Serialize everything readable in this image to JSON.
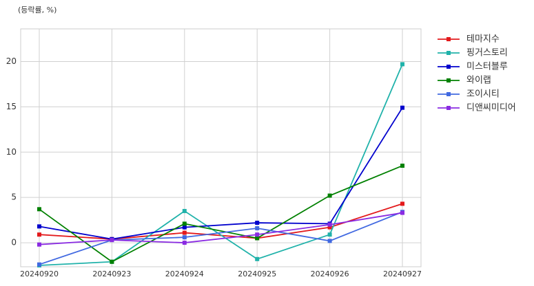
{
  "chart_data": {
    "type": "line",
    "y_label": "(등락률, %)",
    "categories": [
      "20240920",
      "20240923",
      "20240924",
      "20240925",
      "20240926",
      "20240927"
    ],
    "series": [
      {
        "name": "테마지수",
        "color": "#e31a1c",
        "values": [
          0.9,
          0.4,
          1.1,
          0.5,
          1.7,
          4.3
        ]
      },
      {
        "name": "핑거스토리",
        "color": "#20b2aa",
        "values": [
          -2.5,
          -2.1,
          3.5,
          -1.8,
          0.9,
          19.7
        ]
      },
      {
        "name": "미스터블루",
        "color": "#0000cd",
        "values": [
          1.8,
          0.4,
          1.7,
          2.2,
          2.1,
          14.9
        ]
      },
      {
        "name": "와이랩",
        "color": "#008000",
        "values": [
          3.7,
          -2.1,
          2.1,
          0.5,
          5.2,
          8.5
        ]
      },
      {
        "name": "조이시티",
        "color": "#4169e1",
        "values": [
          -2.4,
          0.3,
          0.6,
          1.6,
          0.2,
          3.4
        ]
      },
      {
        "name": "디앤씨미디어",
        "color": "#8a2be2",
        "values": [
          -0.2,
          0.3,
          0.0,
          0.9,
          2.0,
          3.3
        ]
      }
    ],
    "ylim": [
      -2.65,
      23.6
    ],
    "yticks": [
      0,
      5,
      10,
      15,
      20
    ],
    "grid": true,
    "legend": "outside-right"
  }
}
